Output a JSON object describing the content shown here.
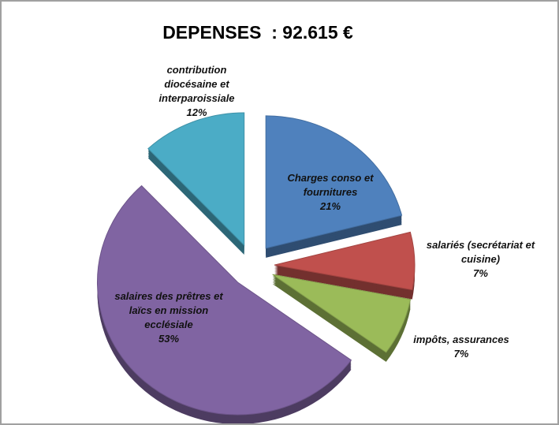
{
  "chart_data": {
    "type": "pie",
    "title": "DEPENSES  : 92.615 €",
    "categories": [
      "Charges conso et fournitures",
      "salariés (secrétariat et cuisine)",
      "impôts, assurances",
      "salaires des prêtres et laïcs en mission ecclésiale",
      "contribution diocésaine et interparoissiale"
    ],
    "values": [
      21,
      7,
      7,
      53,
      12
    ],
    "value_labels": [
      "21%",
      "7%",
      "7%",
      "53%",
      "12%"
    ],
    "colors": [
      "#4f81bd",
      "#c0504d",
      "#9bbb59",
      "#8064a2",
      "#4bacc6"
    ]
  }
}
